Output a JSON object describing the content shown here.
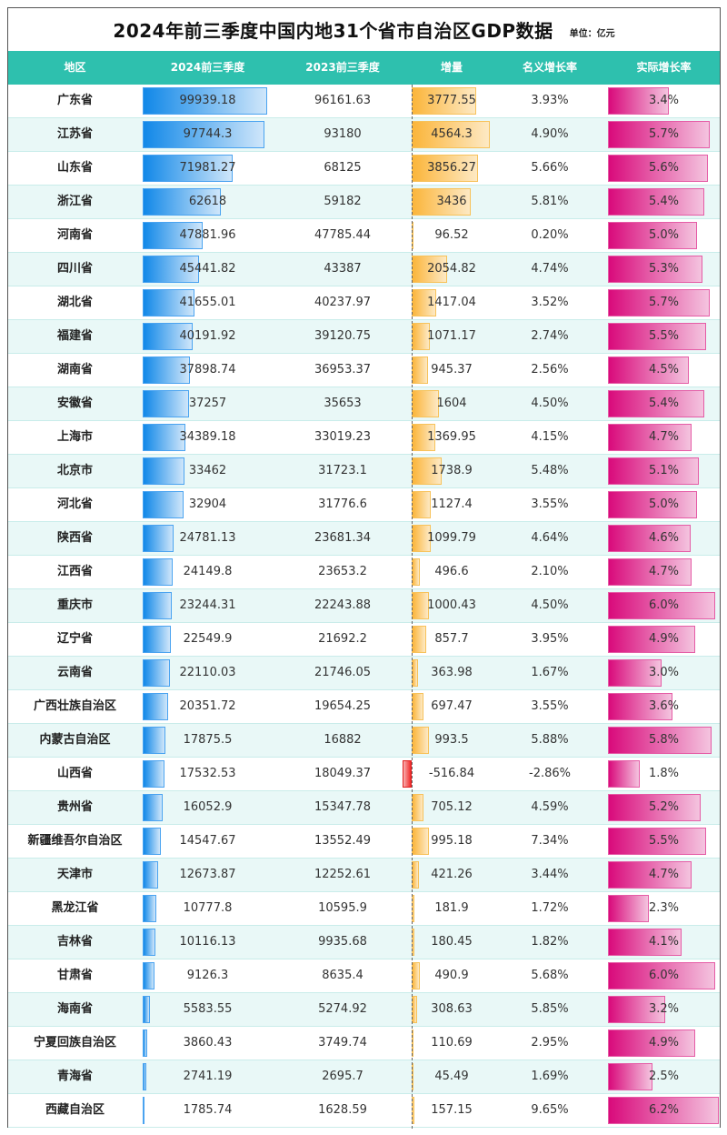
{
  "title": "2024年前三季度中国内地31个省市自治区GDP数据",
  "unit": "单位：亿元",
  "headers": [
    "地区",
    "2024前三季度",
    "2023前三季度",
    "增量",
    "名义增长率",
    "实际增长率"
  ],
  "colors": {
    "header": "#2ec0ae",
    "blue_bar": "#1188e8",
    "orange_bar": "#fbb53a",
    "red_bar": "#f02a2a",
    "pink_bar": "#d90a7b",
    "alt_row": "#e9f8f7"
  },
  "chart_data": {
    "type": "table",
    "title": "2024年前三季度中国内地31个省市自治区GDP数据",
    "subtitle": "单位：亿元",
    "columns": [
      "地区",
      "2024前三季度",
      "2023前三季度",
      "增量",
      "名义增长率",
      "实际增长率"
    ],
    "rows": [
      [
        "广东省",
        "99939.18",
        "96161.63",
        "3777.55",
        "3.93%",
        "3.4%"
      ],
      [
        "江苏省",
        "97744.3",
        "93180",
        "4564.3",
        "4.90%",
        "5.7%"
      ],
      [
        "山东省",
        "71981.27",
        "68125",
        "3856.27",
        "5.66%",
        "5.6%"
      ],
      [
        "浙江省",
        "62618",
        "59182",
        "3436",
        "5.81%",
        "5.4%"
      ],
      [
        "河南省",
        "47881.96",
        "47785.44",
        "96.52",
        "0.20%",
        "5.0%"
      ],
      [
        "四川省",
        "45441.82",
        "43387",
        "2054.82",
        "4.74%",
        "5.3%"
      ],
      [
        "湖北省",
        "41655.01",
        "40237.97",
        "1417.04",
        "3.52%",
        "5.7%"
      ],
      [
        "福建省",
        "40191.92",
        "39120.75",
        "1071.17",
        "2.74%",
        "5.5%"
      ],
      [
        "湖南省",
        "37898.74",
        "36953.37",
        "945.37",
        "2.56%",
        "4.5%"
      ],
      [
        "安徽省",
        "37257",
        "35653",
        "1604",
        "4.50%",
        "5.4%"
      ],
      [
        "上海市",
        "34389.18",
        "33019.23",
        "1369.95",
        "4.15%",
        "4.7%"
      ],
      [
        "北京市",
        "33462",
        "31723.1",
        "1738.9",
        "5.48%",
        "5.1%"
      ],
      [
        "河北省",
        "32904",
        "31776.6",
        "1127.4",
        "3.55%",
        "5.0%"
      ],
      [
        "陕西省",
        "24781.13",
        "23681.34",
        "1099.79",
        "4.64%",
        "4.6%"
      ],
      [
        "江西省",
        "24149.8",
        "23653.2",
        "496.6",
        "2.10%",
        "4.7%"
      ],
      [
        "重庆市",
        "23244.31",
        "22243.88",
        "1000.43",
        "4.50%",
        "6.0%"
      ],
      [
        "辽宁省",
        "22549.9",
        "21692.2",
        "857.7",
        "3.95%",
        "4.9%"
      ],
      [
        "云南省",
        "22110.03",
        "21746.05",
        "363.98",
        "1.67%",
        "3.0%"
      ],
      [
        "广西壮族自治区",
        "20351.72",
        "19654.25",
        "697.47",
        "3.55%",
        "3.6%"
      ],
      [
        "内蒙古自治区",
        "17875.5",
        "16882",
        "993.5",
        "5.88%",
        "5.8%"
      ],
      [
        "山西省",
        "17532.53",
        "18049.37",
        "-516.84",
        "-2.86%",
        "1.8%"
      ],
      [
        "贵州省",
        "16052.9",
        "15347.78",
        "705.12",
        "4.59%",
        "5.2%"
      ],
      [
        "新疆维吾尔自治区",
        "14547.67",
        "13552.49",
        "995.18",
        "7.34%",
        "5.5%"
      ],
      [
        "天津市",
        "12673.87",
        "12252.61",
        "421.26",
        "3.44%",
        "4.7%"
      ],
      [
        "黑龙江省",
        "10777.8",
        "10595.9",
        "181.9",
        "1.72%",
        "2.3%"
      ],
      [
        "吉林省",
        "10116.13",
        "9935.68",
        "180.45",
        "1.82%",
        "4.1%"
      ],
      [
        "甘肃省",
        "9126.3",
        "8635.4",
        "490.9",
        "5.68%",
        "6.0%"
      ],
      [
        "海南省",
        "5583.55",
        "5274.92",
        "308.63",
        "5.85%",
        "3.2%"
      ],
      [
        "宁夏回族自治区",
        "3860.43",
        "3749.74",
        "110.69",
        "2.95%",
        "4.9%"
      ],
      [
        "青海省",
        "2741.19",
        "2695.7",
        "45.49",
        "1.69%",
        "2.5%"
      ],
      [
        "西藏自治区",
        "1785.74",
        "1628.59",
        "157.15",
        "9.65%",
        "6.2%"
      ]
    ],
    "series": [
      {
        "name": "2024前三季度",
        "values": [
          99939.18,
          97744.3,
          71981.27,
          62618,
          47881.96,
          45441.82,
          41655.01,
          40191.92,
          37898.74,
          37257,
          34389.18,
          33462,
          32904,
          24781.13,
          24149.8,
          23244.31,
          22549.9,
          22110.03,
          20351.72,
          17875.5,
          17532.53,
          16052.9,
          14547.67,
          12673.87,
          10777.8,
          10116.13,
          9126.3,
          5583.55,
          3860.43,
          2741.19,
          1785.74
        ]
      },
      {
        "name": "增量",
        "values": [
          3777.55,
          4564.3,
          3856.27,
          3436,
          96.52,
          2054.82,
          1417.04,
          1071.17,
          945.37,
          1604,
          1369.95,
          1738.9,
          1127.4,
          1099.79,
          496.6,
          1000.43,
          857.7,
          363.98,
          697.47,
          993.5,
          -516.84,
          705.12,
          995.18,
          421.26,
          181.9,
          180.45,
          490.9,
          308.63,
          110.69,
          45.49,
          157.15
        ]
      },
      {
        "name": "实际增长率",
        "values": [
          3.4,
          5.7,
          5.6,
          5.4,
          5.0,
          5.3,
          5.7,
          5.5,
          4.5,
          5.4,
          4.7,
          5.1,
          5.0,
          4.6,
          4.7,
          6.0,
          4.9,
          3.0,
          3.6,
          5.8,
          1.8,
          5.2,
          5.5,
          4.7,
          2.3,
          4.1,
          6.0,
          3.2,
          4.9,
          2.5,
          6.2
        ]
      }
    ]
  }
}
